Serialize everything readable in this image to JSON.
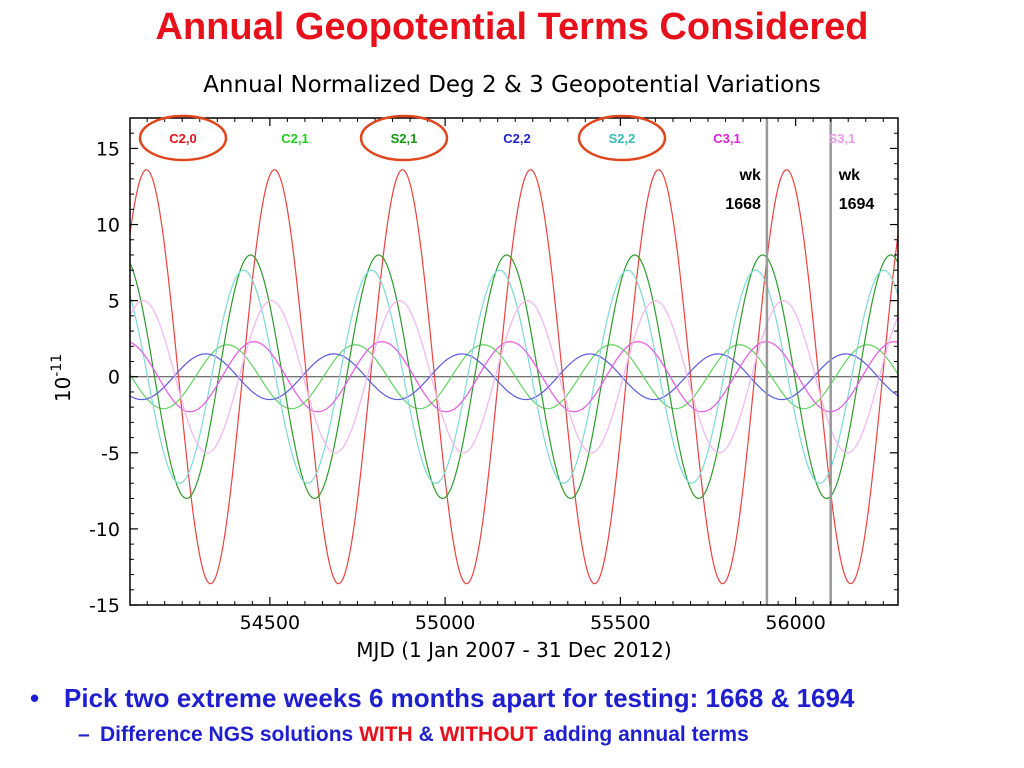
{
  "slide": {
    "title": "Annual Geopotential Terms Considered",
    "bullet1": "Pick two extreme weeks 6 months apart for testing: 1668 & 1694",
    "bullet2_part1": "Difference NGS solutions",
    "bullet2_with": "WITH",
    "bullet2_amp": "&",
    "bullet2_without": "WITHOUT",
    "bullet2_part2": "adding annual terms"
  },
  "chart_data": {
    "type": "line",
    "title": "Annual Normalized Deg 2 & 3 Geopotential Variations",
    "xlabel": "MJD  (1 Jan 2007 - 31 Dec 2012)",
    "ylabel": "10",
    "ylabel_exponent": "-11",
    "xlim": [
      54101,
      56292
    ],
    "ylim": [
      -15,
      17
    ],
    "x_ticks": [
      54500,
      55000,
      55500,
      56000
    ],
    "y_ticks": [
      -15,
      -10,
      -5,
      0,
      5,
      10,
      15
    ],
    "period_days": 365.25,
    "series": [
      {
        "name": "C2,0",
        "color": "#e8433f",
        "label_color": "#e8101a",
        "amplitude": 13.6,
        "peak_mjd": 54148
      },
      {
        "name": "C2,1",
        "color": "#5fd45f",
        "label_color": "#22cc22",
        "amplitude": 2.1,
        "peak_mjd": 54379
      },
      {
        "name": "S2,1",
        "color": "#2f9a2f",
        "label_color": "#119911",
        "amplitude": 8.0,
        "peak_mjd": 54445
      },
      {
        "name": "C2,2",
        "color": "#5a5ae8",
        "label_color": "#2222cc",
        "amplitude": 1.5,
        "peak_mjd": 54317
      },
      {
        "name": "S2,2",
        "color": "#7fd8d8",
        "label_color": "#33bbbb",
        "amplitude": 7.0,
        "peak_mjd": 54425
      },
      {
        "name": "C3,1",
        "color": "#e857e8",
        "label_color": "#dd22dd",
        "amplitude": 2.3,
        "peak_mjd": 54455
      },
      {
        "name": "S3,1",
        "color": "#f3b3f3",
        "label_color": "#ee99ee",
        "amplitude": 5.0,
        "peak_mjd": 54504
      }
    ],
    "circled_series": [
      "C2,0",
      "S2,1",
      "S2,2"
    ],
    "vertical_lines": [
      {
        "mjd": 55918,
        "label_line1": "wk",
        "label_line2": "1668"
      },
      {
        "mjd": 56100,
        "label_line1": "wk",
        "label_line2": "1694"
      }
    ],
    "zero_line": true,
    "grid": false
  }
}
